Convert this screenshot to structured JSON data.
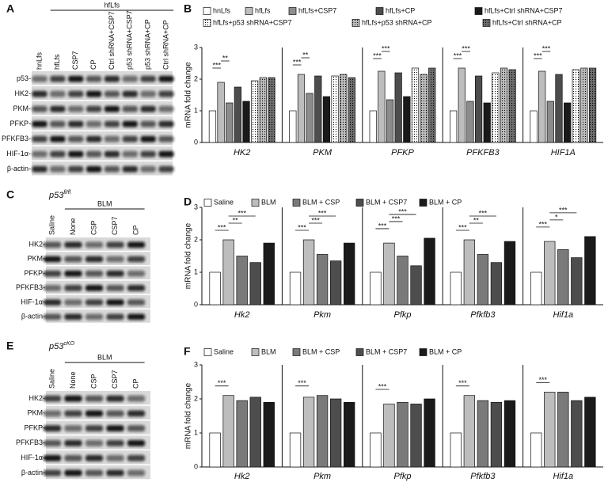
{
  "blots": [
    {
      "panel": "A",
      "header": "hfLfs",
      "lanes": [
        "hnLfs",
        "hfLfs",
        "CSP7",
        "CP",
        "Ctrl shRNA+CSP7",
        "p53 shRNA+CSP7",
        "p53 shRNA+CP",
        "Ctrl shRNA+CP"
      ],
      "rows": [
        "p53-",
        "HK2-",
        "PKM-",
        "PFKP-",
        "PFKFB3-",
        "HIF-1α-",
        "β-actin-"
      ]
    },
    {
      "panel": "C",
      "genotype": {
        "gene": "p53",
        "superscript": "fl/fl"
      },
      "header": "BLM",
      "lanes": [
        "Saline",
        "None",
        "CSP",
        "CSP7",
        "CP"
      ],
      "rows": [
        "HK2-",
        "PKM-",
        "PFKP-",
        "PFKFB3-",
        "HIF-1α-",
        "β-actin-"
      ]
    },
    {
      "panel": "E",
      "genotype": {
        "gene": "p53",
        "superscript": "cKO"
      },
      "header": "BLM",
      "lanes": [
        "Saline",
        "None",
        "CSP",
        "CSP7",
        "CP"
      ],
      "rows": [
        "HK2-",
        "PKM-",
        "PFKP-",
        "PFKFB3-",
        "HIF-1α-",
        "β-actin-"
      ]
    }
  ],
  "chart_data": [
    {
      "type": "bar",
      "panel": "B",
      "ylabel": "mRNA fold change",
      "categories": [
        "HK2",
        "PKM",
        "PFKP",
        "PFKFB3",
        "HIF1A"
      ],
      "ylim": [
        0,
        3
      ],
      "yticks": [
        0,
        1,
        2,
        3
      ],
      "series": [
        {
          "name": "hnLfs",
          "color": "#ffffff",
          "values": [
            1.0,
            1.0,
            1.0,
            1.0,
            1.0
          ]
        },
        {
          "name": "hfLfs",
          "color": "#bdbdbd",
          "values": [
            1.9,
            2.15,
            2.25,
            2.35,
            2.25
          ]
        },
        {
          "name": "hfLfs+CSP7",
          "color": "#8c8c8c",
          "values": [
            1.25,
            1.55,
            1.35,
            1.3,
            1.3
          ]
        },
        {
          "name": "hfLfs+CP",
          "color": "#4d4d4d",
          "values": [
            1.75,
            2.1,
            2.2,
            2.1,
            2.15
          ]
        },
        {
          "name": "hfLfs+Ctrl shRNA+CSP7",
          "color": "#1a1a1a",
          "values": [
            1.3,
            1.45,
            1.45,
            1.25,
            1.25
          ]
        },
        {
          "name": "hfLfs+p53 shRNA+CSP7",
          "color": "#ffffff",
          "fill": "dots",
          "values": [
            1.95,
            2.1,
            2.35,
            2.2,
            2.3
          ]
        },
        {
          "name": "hfLfs+p53 shRNA+CP",
          "color": "#bdbdbd",
          "fill": "dots",
          "values": [
            2.05,
            2.15,
            2.15,
            2.35,
            2.35
          ]
        },
        {
          "name": "hfLfs+Ctrl shRNA+CP",
          "color": "#6e6e6e",
          "fill": "dots",
          "values": [
            2.05,
            2.05,
            2.35,
            2.3,
            2.35
          ]
        }
      ],
      "significance": [
        {
          "category": "HK2",
          "groups": [
            "hnLfs",
            "hfLfs"
          ],
          "label": "***"
        },
        {
          "category": "HK2",
          "groups": [
            "hfLfs",
            "hfLfs+CSP7"
          ],
          "label": "**"
        },
        {
          "category": "PKM",
          "groups": [
            "hnLfs",
            "hfLfs"
          ],
          "label": "***"
        },
        {
          "category": "PKM",
          "groups": [
            "hfLfs",
            "hfLfs+CSP7"
          ],
          "label": "**"
        },
        {
          "category": "PFKP",
          "groups": [
            "hnLfs",
            "hfLfs"
          ],
          "label": "***"
        },
        {
          "category": "PFKP",
          "groups": [
            "hfLfs",
            "hfLfs+CSP7"
          ],
          "label": "***"
        },
        {
          "category": "PFKFB3",
          "groups": [
            "hnLfs",
            "hfLfs"
          ],
          "label": "***"
        },
        {
          "category": "PFKFB3",
          "groups": [
            "hfLfs",
            "hfLfs+CSP7"
          ],
          "label": "***"
        },
        {
          "category": "HIF1A",
          "groups": [
            "hnLfs",
            "hfLfs"
          ],
          "label": "***"
        },
        {
          "category": "HIF1A",
          "groups": [
            "hfLfs",
            "hfLfs+CSP7"
          ],
          "label": "***"
        }
      ]
    },
    {
      "type": "bar",
      "panel": "D",
      "ylabel": "mRNA fold change",
      "categories": [
        "Hk2",
        "Pkm",
        "Pfkp",
        "Pfkfb3",
        "Hif1a"
      ],
      "ylim": [
        0,
        3
      ],
      "yticks": [
        0,
        1,
        2,
        3
      ],
      "series": [
        {
          "name": "Saline",
          "color": "#ffffff",
          "values": [
            1.0,
            1.0,
            1.0,
            1.0,
            1.0
          ]
        },
        {
          "name": "BLM",
          "color": "#bdbdbd",
          "values": [
            2.0,
            2.0,
            1.9,
            2.0,
            1.95
          ]
        },
        {
          "name": "BLM + CSP",
          "color": "#7a7a7a",
          "values": [
            1.5,
            1.55,
            1.5,
            1.55,
            1.7
          ]
        },
        {
          "name": "BLM + CSP7",
          "color": "#4d4d4d",
          "values": [
            1.3,
            1.35,
            1.2,
            1.3,
            1.45
          ]
        },
        {
          "name": "BLM + CP",
          "color": "#1a1a1a",
          "values": [
            1.9,
            1.9,
            2.05,
            1.95,
            2.1
          ]
        }
      ],
      "significance": [
        {
          "category": "Hk2",
          "groups": [
            "Saline",
            "BLM"
          ],
          "label": "***"
        },
        {
          "category": "Hk2",
          "groups": [
            "BLM",
            "BLM + CSP"
          ],
          "label": "**"
        },
        {
          "category": "Hk2",
          "groups": [
            "BLM",
            "BLM + CSP7"
          ],
          "label": "***"
        },
        {
          "category": "Pkm",
          "groups": [
            "Saline",
            "BLM"
          ],
          "label": "***"
        },
        {
          "category": "Pkm",
          "groups": [
            "BLM",
            "BLM + CSP"
          ],
          "label": "***"
        },
        {
          "category": "Pkm",
          "groups": [
            "BLM",
            "BLM + CSP7"
          ],
          "label": "***"
        },
        {
          "category": "Pfkp",
          "groups": [
            "Saline",
            "BLM"
          ],
          "label": "***"
        },
        {
          "category": "Pfkp",
          "groups": [
            "BLM",
            "BLM + CSP"
          ],
          "label": "***"
        },
        {
          "category": "Pfkp",
          "groups": [
            "BLM",
            "BLM + CSP7"
          ],
          "label": "***"
        },
        {
          "category": "Pfkfb3",
          "groups": [
            "Saline",
            "BLM"
          ],
          "label": "***"
        },
        {
          "category": "Pfkfb3",
          "groups": [
            "BLM",
            "BLM + CSP"
          ],
          "label": "**"
        },
        {
          "category": "Pfkfb3",
          "groups": [
            "BLM",
            "BLM + CSP7"
          ],
          "label": "***"
        },
        {
          "category": "Hif1a",
          "groups": [
            "Saline",
            "BLM"
          ],
          "label": "***"
        },
        {
          "category": "Hif1a",
          "groups": [
            "BLM",
            "BLM + CSP"
          ],
          "label": "*"
        },
        {
          "category": "Hif1a",
          "groups": [
            "BLM",
            "BLM + CSP7"
          ],
          "label": "***"
        }
      ]
    },
    {
      "type": "bar",
      "panel": "F",
      "ylabel": "mRNA fold change",
      "categories": [
        "Hk2",
        "Pkm",
        "Pfkp",
        "Pfkfb3",
        "Hif1a"
      ],
      "ylim": [
        0,
        3
      ],
      "yticks": [
        0,
        1,
        2,
        3
      ],
      "series": [
        {
          "name": "Saline",
          "color": "#ffffff",
          "values": [
            1.0,
            1.0,
            1.0,
            1.0,
            1.0
          ]
        },
        {
          "name": "BLM",
          "color": "#bdbdbd",
          "values": [
            2.1,
            2.05,
            1.85,
            2.1,
            2.2
          ]
        },
        {
          "name": "BLM + CSP",
          "color": "#7a7a7a",
          "values": [
            1.95,
            2.1,
            1.9,
            1.95,
            2.2
          ]
        },
        {
          "name": "BLM + CSP7",
          "color": "#4d4d4d",
          "values": [
            2.05,
            2.0,
            1.85,
            1.9,
            1.95
          ]
        },
        {
          "name": "BLM + CP",
          "color": "#1a1a1a",
          "values": [
            1.9,
            1.9,
            2.0,
            1.95,
            2.05
          ]
        }
      ],
      "significance": [
        {
          "category": "Hk2",
          "groups": [
            "Saline",
            "BLM"
          ],
          "label": "***"
        },
        {
          "category": "Pkm",
          "groups": [
            "Saline",
            "BLM"
          ],
          "label": "***"
        },
        {
          "category": "Pfkp",
          "groups": [
            "Saline",
            "BLM"
          ],
          "label": "***"
        },
        {
          "category": "Pfkfb3",
          "groups": [
            "Saline",
            "BLM"
          ],
          "label": "***"
        },
        {
          "category": "Hif1a",
          "groups": [
            "Saline",
            "BLM"
          ],
          "label": "***"
        }
      ]
    }
  ]
}
